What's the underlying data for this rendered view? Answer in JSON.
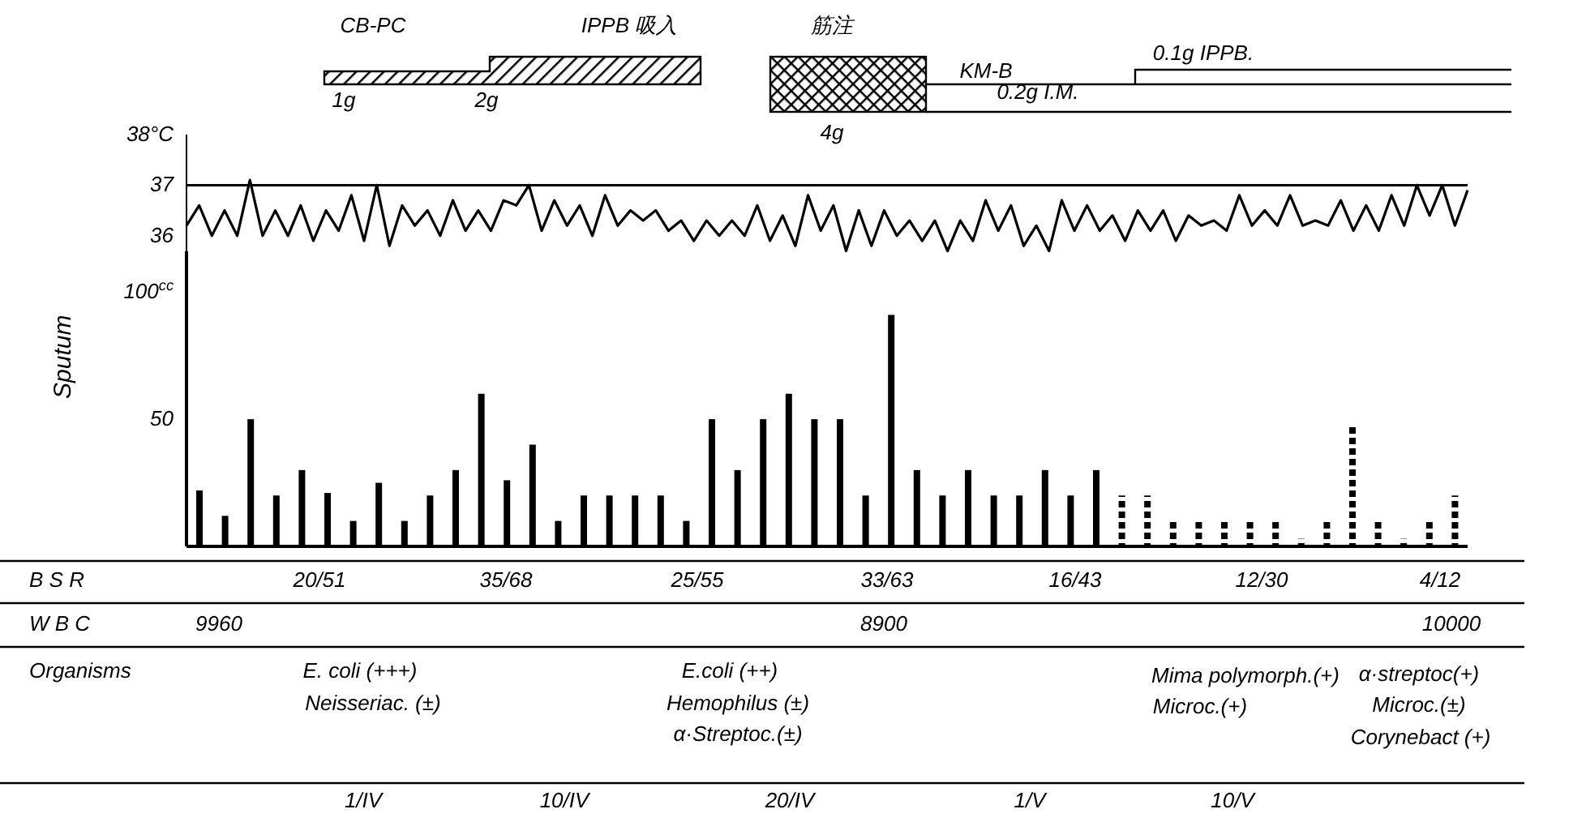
{
  "chart_data": [
    {
      "type": "line",
      "categories": [
        null,
        null,
        null,
        null,
        null,
        null,
        null,
        null,
        null,
        null,
        null,
        null,
        null,
        null,
        null,
        null,
        null,
        null,
        null,
        null,
        null,
        null,
        null,
        null,
        null,
        null,
        null,
        null,
        null,
        null,
        null,
        null,
        null,
        null,
        null,
        null,
        null,
        null,
        null,
        null,
        null,
        null,
        null,
        null,
        null,
        null,
        null,
        null,
        null,
        null,
        null,
        null,
        null,
        null,
        null,
        null,
        null,
        null,
        null,
        null,
        null,
        null,
        null,
        null,
        null,
        null,
        null,
        null,
        null,
        null,
        null,
        null,
        null,
        null,
        null,
        null,
        null,
        null,
        null,
        null,
        null,
        null,
        null,
        null,
        null,
        null,
        null,
        null,
        null,
        null,
        null,
        null,
        null,
        null,
        null,
        null,
        null,
        null,
        null,
        null,
        null,
        null
      ],
      "values": [
        36.2,
        36.6,
        36.0,
        36.5,
        36.0,
        37.1,
        36.0,
        36.5,
        36.0,
        36.6,
        35.9,
        36.5,
        36.1,
        36.8,
        35.9,
        37.0,
        35.8,
        36.6,
        36.2,
        36.5,
        36.0,
        36.7,
        36.1,
        36.5,
        36.1,
        36.7,
        36.6,
        37.0,
        36.1,
        36.7,
        36.2,
        36.6,
        36.0,
        36.8,
        36.2,
        36.5,
        36.3,
        36.5,
        36.1,
        36.3,
        35.9,
        36.3,
        36.0,
        36.3,
        36.0,
        36.6,
        35.9,
        36.4,
        35.8,
        36.8,
        36.1,
        36.6,
        35.7,
        36.5,
        35.8,
        36.5,
        36.0,
        36.3,
        35.9,
        36.3,
        35.7,
        36.3,
        35.9,
        36.7,
        36.1,
        36.6,
        35.8,
        36.2,
        35.7,
        36.7,
        36.1,
        36.6,
        36.1,
        36.4,
        35.9,
        36.5,
        36.1,
        36.5,
        35.9,
        36.4,
        36.2,
        36.3,
        36.1,
        36.8,
        36.2,
        36.5,
        36.2,
        36.8,
        36.2,
        36.3,
        36.2,
        36.7,
        36.1,
        36.6,
        36.1,
        36.8,
        36.2,
        37.0,
        36.4,
        37.0,
        36.2,
        36.9
      ],
      "color": "#000000",
      "ylim": [
        35.5,
        38
      ],
      "yticks": [
        36,
        37,
        {
          "value": 38,
          "label": "38°C"
        }
      ],
      "ref_lines": [
        {
          "axis": "y",
          "value": 37,
          "label": null,
          "color": "#000000"
        }
      ],
      "annotations": [
        "CB-PC",
        "IPPB 吸入",
        "1g",
        "2g",
        "筋注",
        "4g",
        "KM-B",
        "0.1g IPPB.",
        "0.2g I.M."
      ]
    },
    {
      "type": "bar",
      "ylabel": "Sputum",
      "categories": [
        null,
        null,
        null,
        null,
        null,
        null,
        null,
        null,
        null,
        null,
        null,
        null,
        null,
        null,
        null,
        null,
        null,
        null,
        null,
        null,
        null,
        null,
        null,
        null,
        null,
        null,
        null,
        null,
        null,
        null,
        null,
        null,
        null,
        null,
        null,
        null,
        null,
        null,
        null,
        null,
        null,
        null,
        null,
        null,
        null,
        null,
        null,
        null,
        null,
        null
      ],
      "series": [
        {
          "color": "#000000",
          "values": [
            22,
            12,
            50,
            20,
            30,
            21,
            10,
            25,
            10,
            20,
            30,
            60,
            26,
            40,
            10,
            20,
            20,
            20,
            20,
            10,
            50,
            30,
            50,
            60,
            50,
            50,
            20,
            91,
            30,
            20,
            30,
            20,
            20,
            30,
            20,
            30,
            null,
            null,
            null,
            null,
            null,
            null,
            null,
            null,
            null,
            null,
            null,
            null,
            null,
            null
          ]
        },
        {
          "color": "#000000",
          "line_style": "dashed",
          "values": [
            null,
            null,
            null,
            null,
            null,
            null,
            null,
            null,
            null,
            null,
            null,
            null,
            null,
            null,
            null,
            null,
            null,
            null,
            null,
            null,
            null,
            null,
            null,
            null,
            null,
            null,
            null,
            null,
            null,
            null,
            null,
            null,
            null,
            null,
            null,
            null,
            20,
            20,
            10,
            10,
            10,
            10,
            10,
            3,
            10,
            47,
            10,
            3,
            10,
            20
          ]
        }
      ],
      "ylim": [
        0,
        116
      ],
      "yticks": [
        50,
        {
          "value": 100,
          "label": "100$^{cc}$"
        }
      ],
      "annotations": [
        "B S R",
        "20/51",
        "35/68",
        "25/55",
        "33/63",
        "16/43",
        "12/30",
        "4/12",
        "W B C",
        "9960",
        "8900",
        "10000",
        "Organisms",
        "E. coli (+++)",
        "Neisseriac. (±)",
        "E.coli (++)",
        "Hemophilus (±)",
        "α·Streptoc.(±)",
        "Mima polymorph.(+)",
        "Microc.(+)",
        "α·streptoc(+)",
        "Microc.(±)",
        "Corynebact (+)",
        "1/IV",
        "10/IV",
        "20/IV",
        "1/V",
        "10/V"
      ]
    }
  ]
}
